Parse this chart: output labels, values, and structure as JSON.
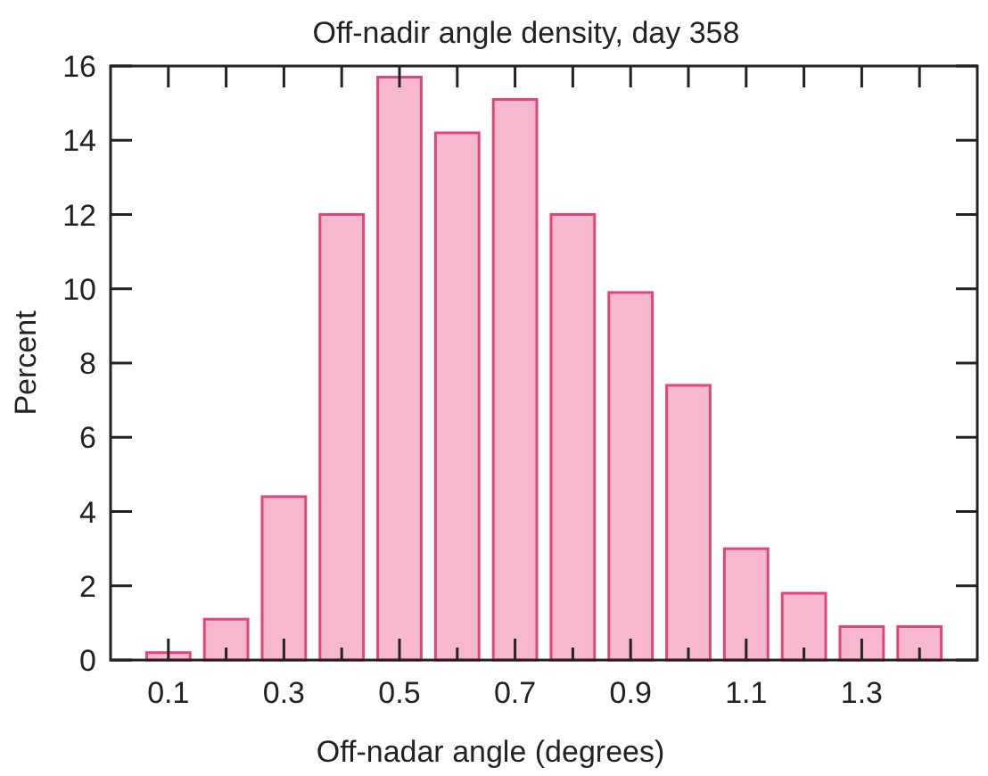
{
  "chart_data": {
    "type": "histogram",
    "title": "Off-nadir angle density, day 358",
    "xlabel": "Off-nadar angle (degrees)",
    "ylabel": "Percent",
    "bins": [
      0.05,
      0.15,
      0.25,
      0.35,
      0.45,
      0.55,
      0.65,
      0.75,
      0.85,
      0.95,
      1.05,
      1.15,
      1.25,
      1.35,
      1.45
    ],
    "values": [
      0.2,
      1.1,
      4.4,
      12,
      15.7,
      14.2,
      15.1,
      12,
      9.9,
      7.4,
      3,
      1.8,
      0.9,
      0.9
    ],
    "color": "#f7b8cf",
    "xlim": [
      0,
      1.5
    ],
    "xticks": [
      0.1,
      {
        "value": 0.2,
        "label": null
      },
      0.3,
      {
        "value": 0.4,
        "label": null
      },
      0.5,
      {
        "value": 0.6,
        "label": null
      },
      0.7,
      {
        "value": 0.8,
        "label": null
      },
      0.9,
      {
        "value": 1.0,
        "label": null
      },
      1.1,
      {
        "value": 1.2,
        "label": null
      },
      1.3,
      {
        "value": 1.4,
        "label": null
      }
    ],
    "ylim": [
      0,
      16
    ],
    "yticks": [
      0,
      2,
      4,
      6,
      8,
      10,
      12,
      14,
      16
    ],
    "grid": false
  }
}
